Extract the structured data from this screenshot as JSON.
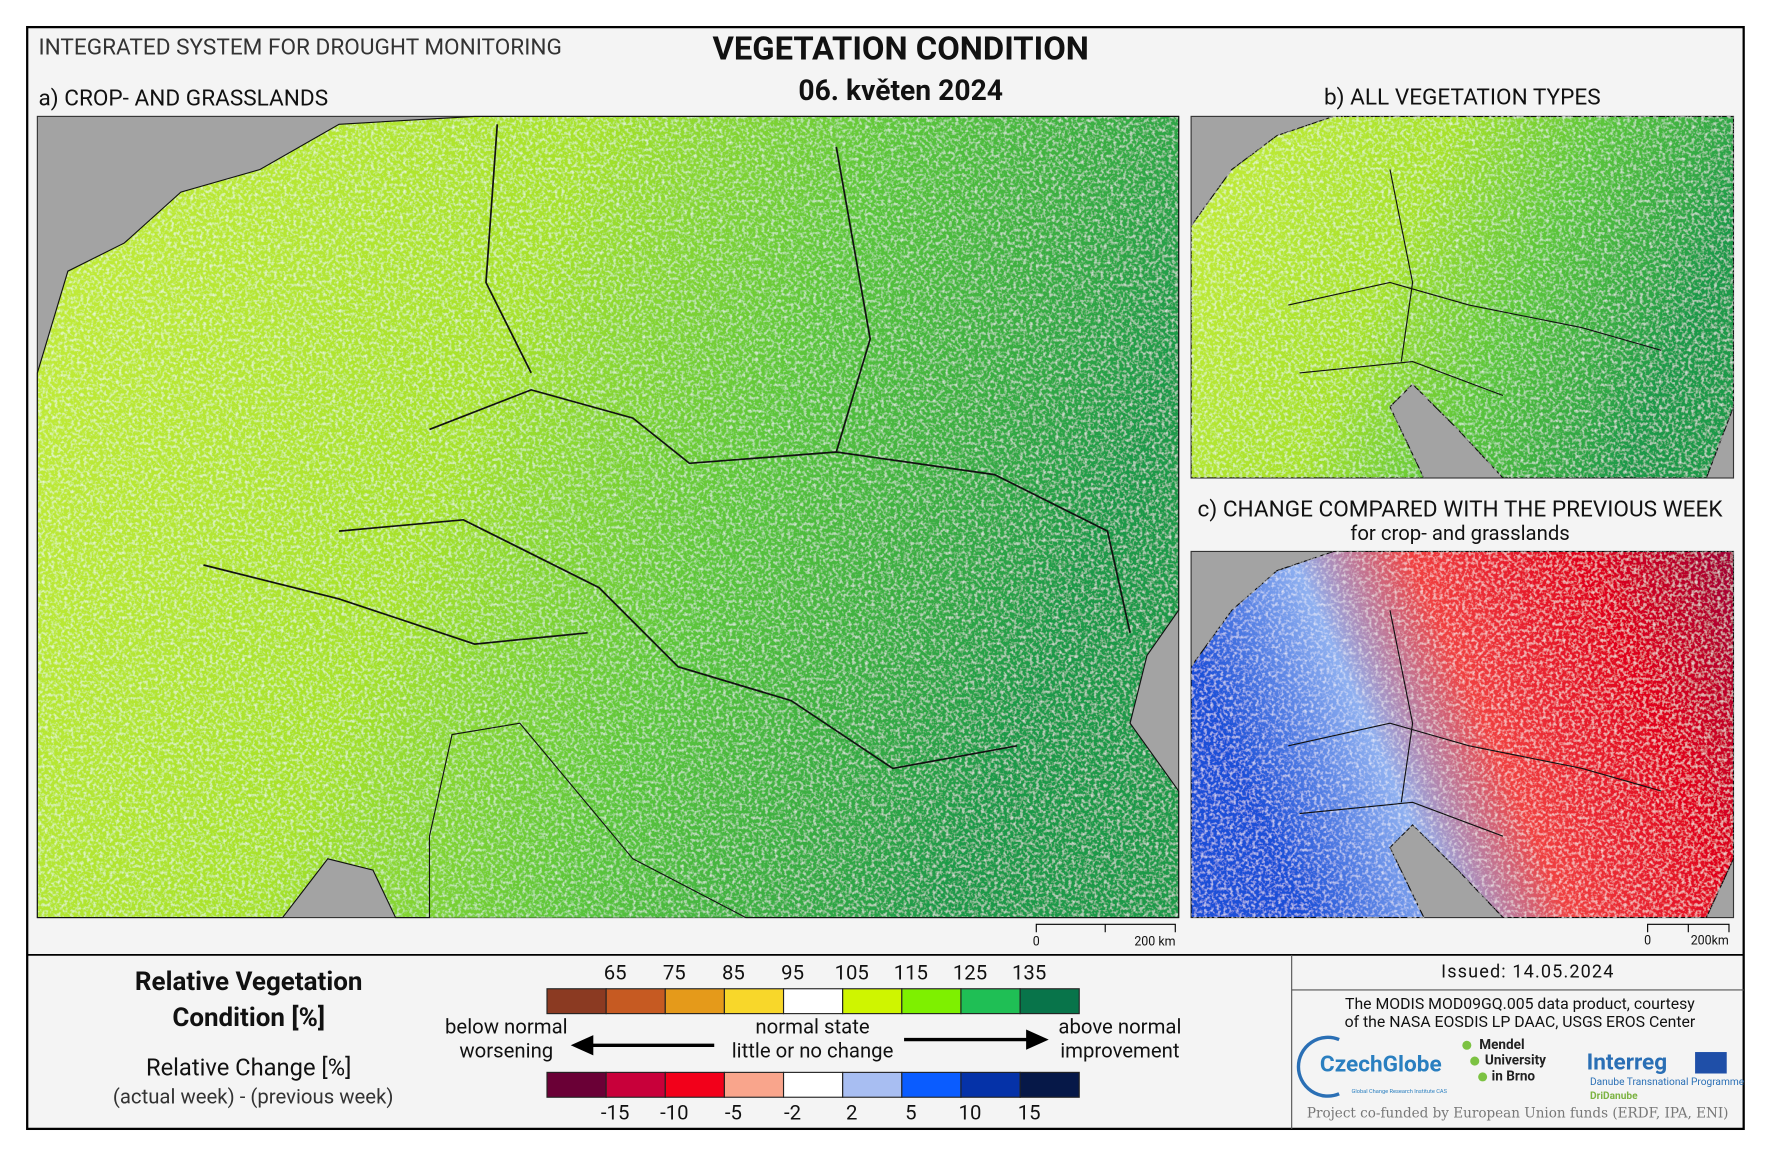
{
  "header": {
    "system": "INTEGRATED SYSTEM FOR DROUGHT MONITORING",
    "title": "VEGETATION CONDITION",
    "date": "06. květen 2024"
  },
  "panels": {
    "a": {
      "label": "a) CROP- AND GRASSLANDS",
      "scale_start": "0",
      "scale_end": "200 km"
    },
    "b": {
      "label": "b) ALL VEGETATION TYPES"
    },
    "c": {
      "label": "c) CHANGE COMPARED WITH THE PREVIOUS WEEK",
      "sublabel": "for crop- and grasslands",
      "scale_start": "0",
      "scale_end": "200km"
    }
  },
  "legend": {
    "condition_title": [
      "Relative Vegetation",
      "Condition [%]"
    ],
    "condition_ticks": [
      65,
      75,
      85,
      95,
      105,
      115,
      125,
      135
    ],
    "condition_colors": [
      "#8b3a22",
      "#c65a22",
      "#e59a1a",
      "#f8d72a",
      "#ffffff",
      "#cff500",
      "#7ef000",
      "#1fbf55",
      "#08744a"
    ],
    "left": [
      "below normal",
      "worsening"
    ],
    "middle": [
      "normal state",
      "little or no change"
    ],
    "right": [
      "above normal",
      "improvement"
    ],
    "change_title": "Relative Change [%]",
    "change_subtitle": "(actual week) - (previous week)",
    "change_ticks": [
      -15,
      -10,
      -5,
      -2,
      2,
      5,
      10,
      15
    ],
    "change_colors": [
      "#6a0036",
      "#c8003a",
      "#f2001a",
      "#f9a58c",
      "#ffffff",
      "#a8bef2",
      "#0a5cff",
      "#0532a8",
      "#061848"
    ]
  },
  "footer": {
    "issued": "Issued: 14.05.2024",
    "credit": [
      "The MODIS MOD09GQ.005 data product, courtesy",
      "of the NASA EOSDIS LP DAAC, USGS EROS Center"
    ],
    "logos": {
      "czechglobe": "CzechGlobe",
      "czechglobe_sub": "Global Change Research Institute CAS",
      "mendel": [
        "Mendel",
        "University",
        "in Brno"
      ],
      "interreg": "Interreg",
      "interreg_sub": "Danube Transnational Programme",
      "project": "DriDanube"
    },
    "funding": "Project co-funded by European Union funds (ERDF, IPA, ENI)"
  }
}
